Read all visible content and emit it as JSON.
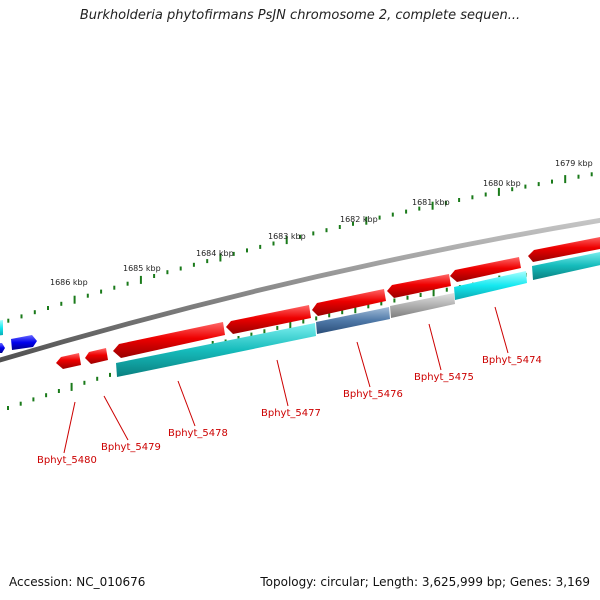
{
  "title": "Burkholderia phytofirmans PsJN chromosome 2, complete sequen...",
  "footer": {
    "accession": "Accession: NC_010676",
    "summary": "Topology: circular; Length: 3,625,999 bp; Genes: 3,169"
  },
  "scale_labels": [
    "1686 kbp",
    "1685 kbp",
    "1684 kbp",
    "1683 kbp",
    "1682 kbp",
    "1681 kbp",
    "1680 kbp",
    "1679 kbp"
  ],
  "gene_labels": [
    "Bphyt_5480",
    "Bphyt_5479",
    "Bphyt_5478",
    "Bphyt_5477",
    "Bphyt_5476",
    "Bphyt_5475",
    "Bphyt_5474"
  ],
  "colors": {
    "cds": "#ee0000",
    "rna_feature": "#00b8b8",
    "flanking_gene": "#0000ee",
    "backbone": "#777777",
    "tick": "#1a7a1a",
    "label": "#cc0000"
  }
}
